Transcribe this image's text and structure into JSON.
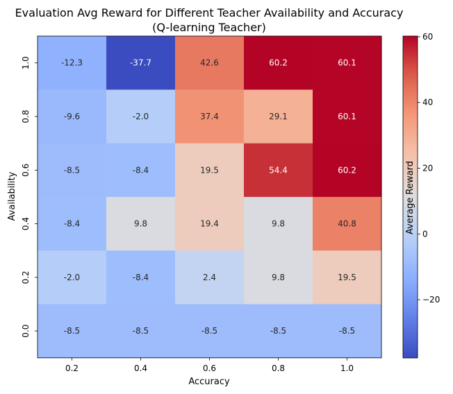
{
  "chart_data": {
    "type": "heatmap",
    "title": "Evaluation Avg Reward for Different Teacher Availability and Accuracy",
    "subtitle": "(Q-learning Teacher)",
    "xlabel": "Accuracy",
    "ylabel": "Availability",
    "x_categories": [
      "0.2",
      "0.4",
      "0.6",
      "0.8",
      "1.0"
    ],
    "y_categories": [
      "1.0",
      "0.8",
      "0.6",
      "0.4",
      "0.2",
      "0.0"
    ],
    "values": [
      [
        -12.3,
        -37.7,
        42.6,
        60.2,
        60.1
      ],
      [
        -9.6,
        -2.0,
        37.4,
        29.1,
        60.1
      ],
      [
        -8.5,
        -8.4,
        19.5,
        54.4,
        60.2
      ],
      [
        -8.4,
        9.8,
        19.4,
        9.8,
        40.8
      ],
      [
        -2.0,
        -8.4,
        2.4,
        9.8,
        19.5
      ],
      [
        -8.5,
        -8.5,
        -8.5,
        -8.5,
        -8.5
      ]
    ],
    "colorbar": {
      "label": "Average Reward",
      "range": [
        -37.7,
        60.2
      ],
      "ticks": [
        60,
        40,
        20,
        0,
        -20
      ],
      "colormap": "coolwarm"
    }
  }
}
